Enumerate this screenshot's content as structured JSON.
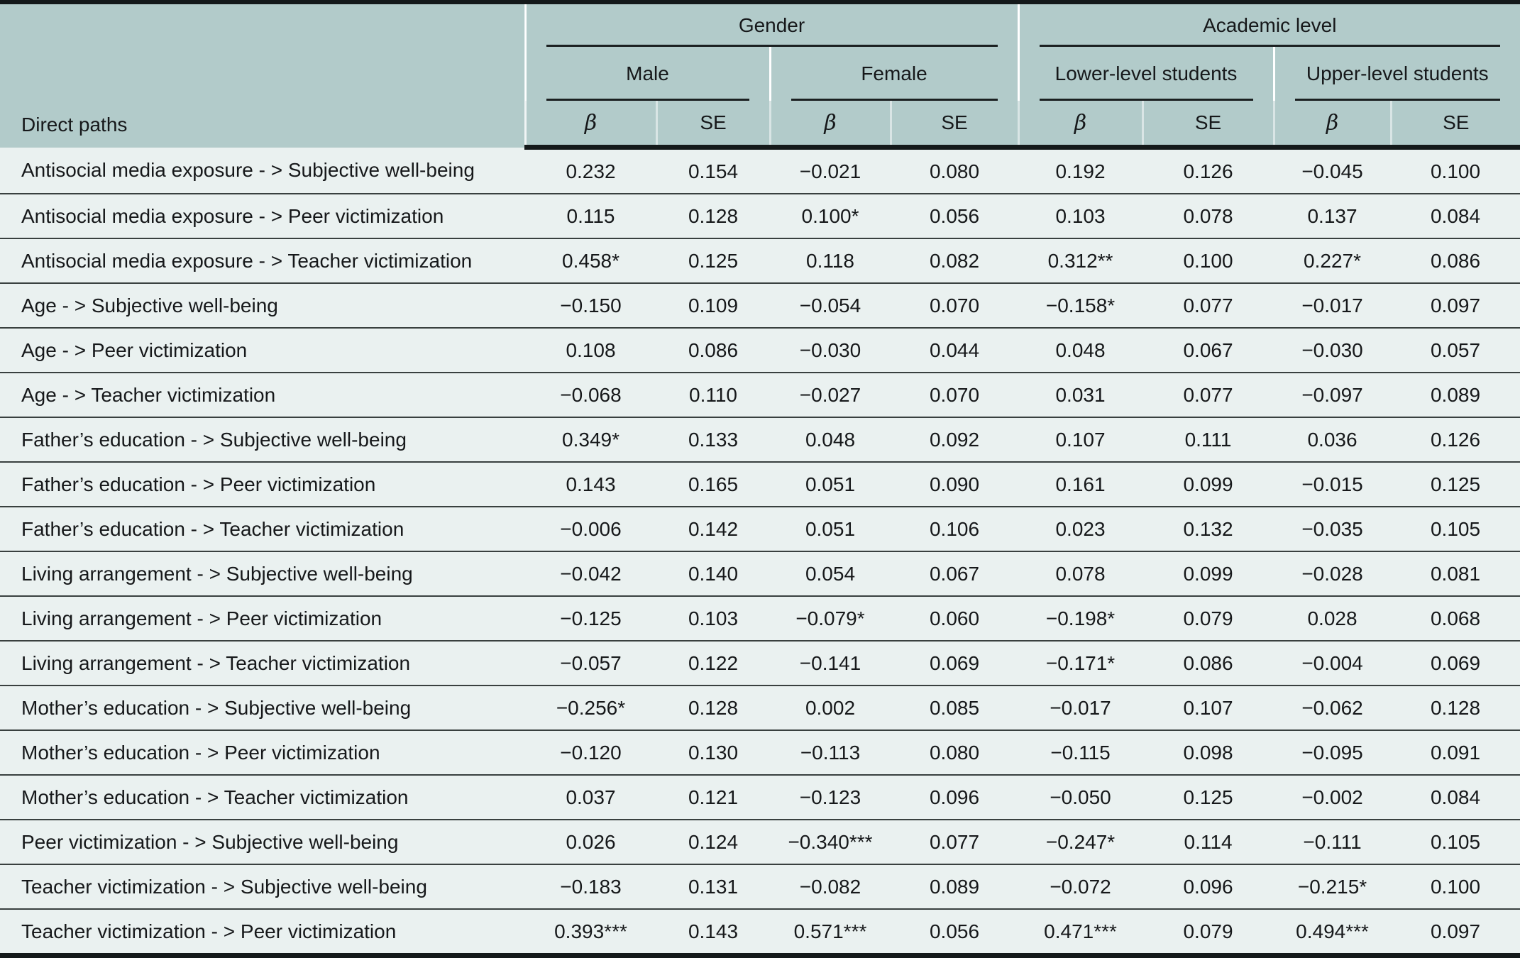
{
  "colors": {
    "page_bg": "#ffffff",
    "header_bg": "#b2cbca",
    "body_bg": "#eaf1f0",
    "rule_thin": "#1b2021",
    "rule_thick": "#14191a",
    "row_line": "#39403f",
    "text": "#16181a"
  },
  "table": {
    "row_header_label": "Direct paths",
    "groups": [
      {
        "label": "Gender",
        "subgroups": [
          {
            "label": "Male"
          },
          {
            "label": "Female"
          }
        ]
      },
      {
        "label": "Academic level",
        "subgroups": [
          {
            "label": "Lower-level students"
          },
          {
            "label": "Upper-level students"
          }
        ]
      }
    ],
    "stat_headers": {
      "beta": "β",
      "se": "SE"
    },
    "rows": [
      {
        "path": "Antisocial media exposure - > Subjective well-being",
        "values": [
          "0.232",
          "0.154",
          "−0.021",
          "0.080",
          "0.192",
          "0.126",
          "−0.045",
          "0.100"
        ]
      },
      {
        "path": "Antisocial media exposure - > Peer victimization",
        "values": [
          "0.115",
          "0.128",
          "0.100*",
          "0.056",
          "0.103",
          "0.078",
          "0.137",
          "0.084"
        ]
      },
      {
        "path": "Antisocial media exposure - > Teacher victimization",
        "values": [
          "0.458*",
          "0.125",
          "0.118",
          "0.082",
          "0.312**",
          "0.100",
          "0.227*",
          "0.086"
        ]
      },
      {
        "path": "Age - > Subjective well-being",
        "values": [
          "−0.150",
          "0.109",
          "−0.054",
          "0.070",
          "−0.158*",
          "0.077",
          "−0.017",
          "0.097"
        ]
      },
      {
        "path": "Age - > Peer victimization",
        "values": [
          "0.108",
          "0.086",
          "−0.030",
          "0.044",
          "0.048",
          "0.067",
          "−0.030",
          "0.057"
        ]
      },
      {
        "path": "Age - > Teacher victimization",
        "values": [
          "−0.068",
          "0.110",
          "−0.027",
          "0.070",
          "0.031",
          "0.077",
          "−0.097",
          "0.089"
        ]
      },
      {
        "path": "Father’s education - > Subjective well-being",
        "values": [
          "0.349*",
          "0.133",
          "0.048",
          "0.092",
          "0.107",
          "0.111",
          "0.036",
          "0.126"
        ]
      },
      {
        "path": "Father’s education - > Peer victimization",
        "values": [
          "0.143",
          "0.165",
          "0.051",
          "0.090",
          "0.161",
          "0.099",
          "−0.015",
          "0.125"
        ]
      },
      {
        "path": "Father’s education - > Teacher victimization",
        "values": [
          "−0.006",
          "0.142",
          "0.051",
          "0.106",
          "0.023",
          "0.132",
          "−0.035",
          "0.105"
        ]
      },
      {
        "path": "Living arrangement - > Subjective well-being",
        "values": [
          "−0.042",
          "0.140",
          "0.054",
          "0.067",
          "0.078",
          "0.099",
          "−0.028",
          "0.081"
        ]
      },
      {
        "path": "Living arrangement - > Peer victimization",
        "values": [
          "−0.125",
          "0.103",
          "−0.079*",
          "0.060",
          "−0.198*",
          "0.079",
          "0.028",
          "0.068"
        ]
      },
      {
        "path": "Living arrangement - > Teacher victimization",
        "values": [
          "−0.057",
          "0.122",
          "−0.141",
          "0.069",
          "−0.171*",
          "0.086",
          "−0.004",
          "0.069"
        ]
      },
      {
        "path": "Mother’s education - > Subjective well-being",
        "values": [
          "−0.256*",
          "0.128",
          "0.002",
          "0.085",
          "−0.017",
          "0.107",
          "−0.062",
          "0.128"
        ]
      },
      {
        "path": "Mother’s education - > Peer victimization",
        "values": [
          "−0.120",
          "0.130",
          "−0.113",
          "0.080",
          "−0.115",
          "0.098",
          "−0.095",
          "0.091"
        ]
      },
      {
        "path": "Mother’s education - > Teacher victimization",
        "values": [
          "0.037",
          "0.121",
          "−0.123",
          "0.096",
          "−0.050",
          "0.125",
          "−0.002",
          "0.084"
        ]
      },
      {
        "path": "Peer victimization - > Subjective well-being",
        "values": [
          "0.026",
          "0.124",
          "−0.340***",
          "0.077",
          "−0.247*",
          "0.114",
          "−0.111",
          "0.105"
        ]
      },
      {
        "path": "Teacher victimization - > Subjective well-being",
        "values": [
          "−0.183",
          "0.131",
          "−0.082",
          "0.089",
          "−0.072",
          "0.096",
          "−0.215*",
          "0.100"
        ]
      },
      {
        "path": "Teacher victimization - > Peer victimization",
        "values": [
          "0.393***",
          "0.143",
          "0.571***",
          "0.056",
          "0.471***",
          "0.079",
          "0.494***",
          "0.097"
        ]
      }
    ]
  }
}
